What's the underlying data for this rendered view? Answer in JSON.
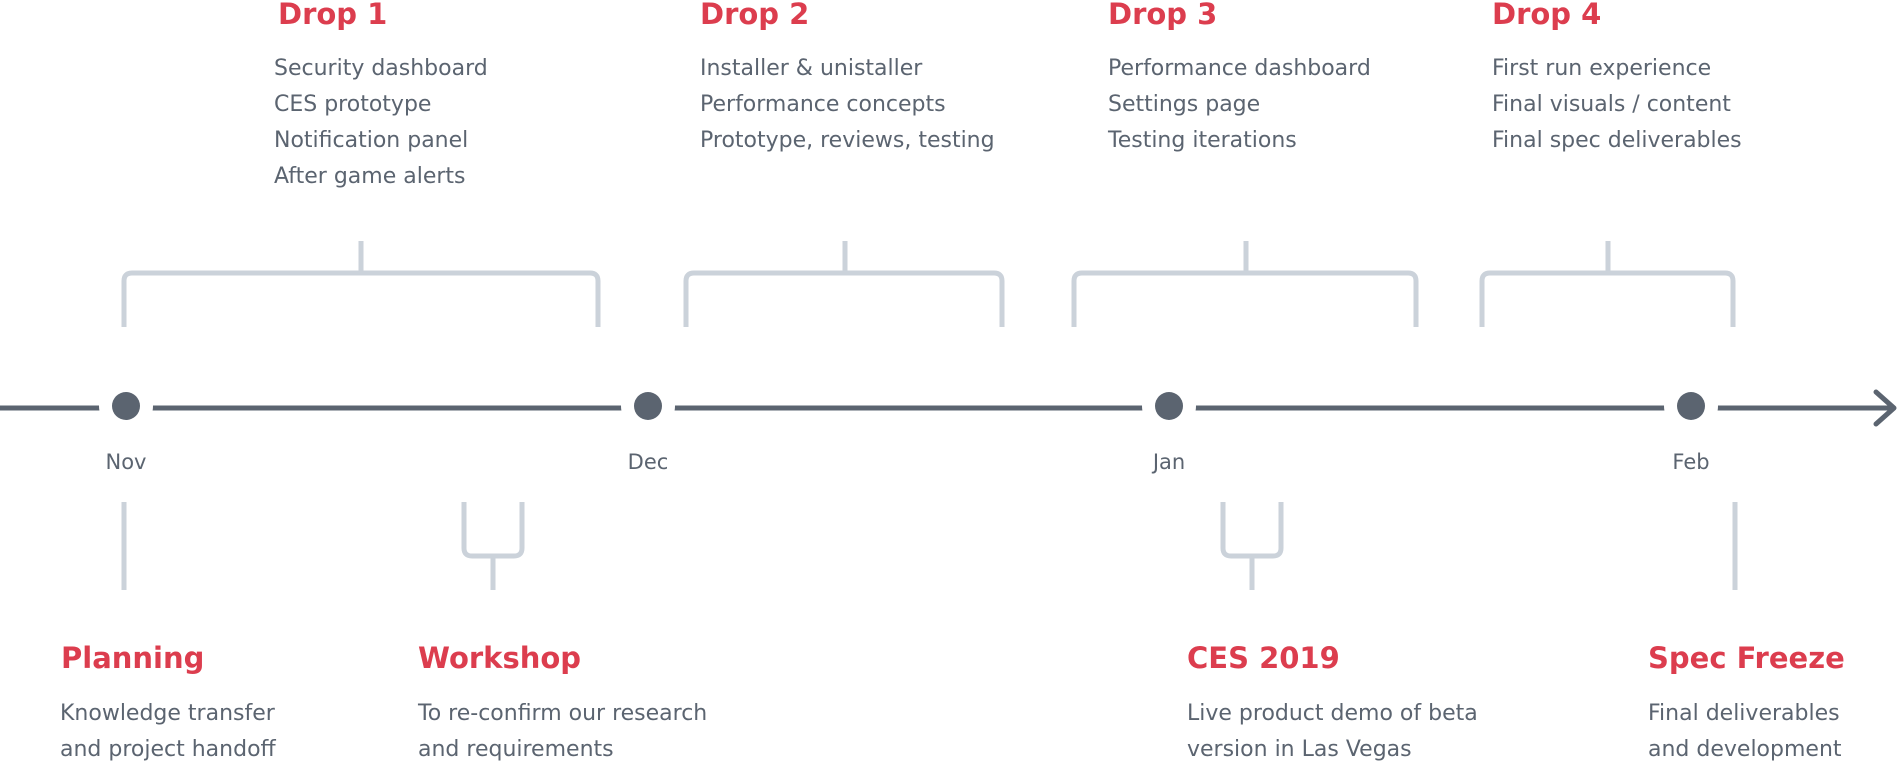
{
  "months": [
    {
      "id": "nov",
      "label": "Nov"
    },
    {
      "id": "dec",
      "label": "Dec"
    },
    {
      "id": "jan",
      "label": "Jan"
    },
    {
      "id": "feb",
      "label": "Feb"
    }
  ],
  "drops": [
    {
      "title": "Drop 1",
      "items": [
        "Security dashboard",
        "CES prototype",
        "Notification panel",
        "After game alerts"
      ]
    },
    {
      "title": "Drop 2",
      "items": [
        "Installer & unistaller",
        "Performance concepts",
        "Prototype, reviews, testing"
      ]
    },
    {
      "title": "Drop 3",
      "items": [
        "Performance dashboard",
        "Settings page",
        "Testing iterations"
      ]
    },
    {
      "title": "Drop 4",
      "items": [
        "First run experience",
        "Final visuals / content",
        "Final spec deliverables"
      ]
    }
  ],
  "milestones": [
    {
      "title": "Planning",
      "lines": [
        "Knowledge transfer",
        "and project handoff"
      ]
    },
    {
      "title": "Workshop",
      "lines": [
        "To re-confirm our research",
        "and requirements"
      ]
    },
    {
      "title": "CES 2019",
      "lines": [
        "Live product demo of beta",
        "version in Las Vegas"
      ]
    },
    {
      "title": "Spec Freeze",
      "lines": [
        "Final deliverables",
        "and development"
      ]
    }
  ],
  "colors": {
    "accent": "#dc3d4e",
    "text": "#5b6470",
    "axis": "#5b6470",
    "bracket": "#cbd2da",
    "node": "#5b6470"
  }
}
